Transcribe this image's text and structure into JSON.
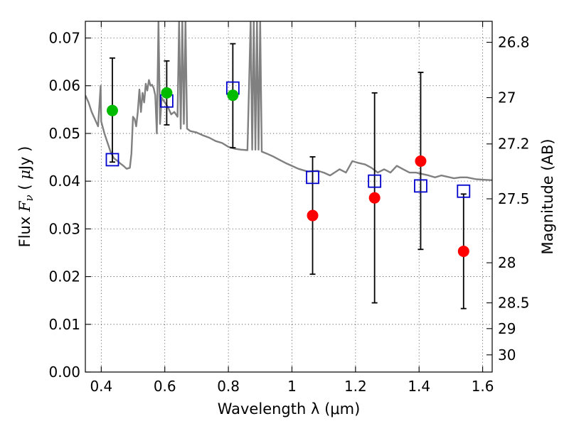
{
  "chart_data": {
    "type": "scatter",
    "title": "",
    "xlabel": "Wavelength  λ (μm)",
    "ylabel": "Flux  F_ν  ( μJy )",
    "ylabel_right": "Magnitude (AB)",
    "xlim": [
      0.35,
      1.63
    ],
    "ylim": [
      0.0,
      0.0735
    ],
    "grid": true,
    "x_ticks": [
      0.4,
      0.6,
      0.8,
      1.0,
      1.2,
      1.4,
      1.6
    ],
    "x_tick_labels": [
      "0.4",
      "0.6",
      "0.8",
      "1",
      "1.2",
      "1.4",
      "1.6"
    ],
    "y_ticks": [
      0.0,
      0.01,
      0.02,
      0.03,
      0.04,
      0.05,
      0.06,
      0.07
    ],
    "y_tick_labels": [
      "0.00",
      "0.01",
      "0.02",
      "0.03",
      "0.04",
      "0.05",
      "0.06",
      "0.07"
    ],
    "right_ticks": [
      {
        "label": "26.8",
        "flux": 0.0691
      },
      {
        "label": "27",
        "flux": 0.0575
      },
      {
        "label": "27.2",
        "flux": 0.0478
      },
      {
        "label": "27.5",
        "flux": 0.0363
      },
      {
        "label": "28",
        "flux": 0.0229
      },
      {
        "label": "28.5",
        "flux": 0.0145
      },
      {
        "label": "29",
        "flux": 0.0091
      },
      {
        "label": "30",
        "flux": 0.0036
      }
    ],
    "series": [
      {
        "marker": "circle",
        "color": "#00bb00",
        "points": [
          {
            "x": 0.435,
            "y": 0.0548
          },
          {
            "x": 0.606,
            "y": 0.0585
          },
          {
            "x": 0.814,
            "y": 0.058
          }
        ]
      },
      {
        "marker": "circle",
        "color": "#ff0000",
        "points": [
          {
            "x": 1.065,
            "y": 0.0328
          },
          {
            "x": 1.26,
            "y": 0.0365
          },
          {
            "x": 1.405,
            "y": 0.0442
          },
          {
            "x": 1.54,
            "y": 0.0253
          }
        ]
      },
      {
        "marker": "square-open",
        "color": "#0000cc",
        "points": [
          {
            "x": 0.435,
            "y": 0.0445
          },
          {
            "x": 0.606,
            "y": 0.0568
          },
          {
            "x": 0.814,
            "y": 0.0595
          },
          {
            "x": 1.065,
            "y": 0.0408
          },
          {
            "x": 1.26,
            "y": 0.04
          },
          {
            "x": 1.405,
            "y": 0.039
          },
          {
            "x": 1.54,
            "y": 0.0379
          }
        ]
      }
    ],
    "error_bars": [
      {
        "x": 0.435,
        "low": 0.044,
        "high": 0.0658
      },
      {
        "x": 0.606,
        "low": 0.0518,
        "high": 0.0652
      },
      {
        "x": 0.814,
        "low": 0.047,
        "high": 0.0688
      },
      {
        "x": 1.065,
        "low": 0.0205,
        "high": 0.0451
      },
      {
        "x": 1.26,
        "low": 0.0145,
        "high": 0.0585
      },
      {
        "x": 1.405,
        "low": 0.0257,
        "high": 0.0628
      },
      {
        "x": 1.54,
        "low": 0.0133,
        "high": 0.0373
      }
    ],
    "spectrum": {
      "color": "#808080",
      "points": [
        [
          0.35,
          0.058
        ],
        [
          0.36,
          0.0565
        ],
        [
          0.37,
          0.0545
        ],
        [
          0.38,
          0.053
        ],
        [
          0.39,
          0.0515
        ],
        [
          0.398,
          0.06
        ],
        [
          0.4,
          0.0525
        ],
        [
          0.41,
          0.05
        ],
        [
          0.42,
          0.048
        ],
        [
          0.43,
          0.046
        ],
        [
          0.44,
          0.0448
        ],
        [
          0.45,
          0.0443
        ],
        [
          0.46,
          0.0437
        ],
        [
          0.47,
          0.0432
        ],
        [
          0.48,
          0.0426
        ],
        [
          0.49,
          0.0428
        ],
        [
          0.495,
          0.0458
        ],
        [
          0.5,
          0.0535
        ],
        [
          0.505,
          0.053
        ],
        [
          0.51,
          0.0515
        ],
        [
          0.515,
          0.0545
        ],
        [
          0.52,
          0.0592
        ],
        [
          0.525,
          0.0545
        ],
        [
          0.53,
          0.0585
        ],
        [
          0.535,
          0.0565
        ],
        [
          0.54,
          0.0604
        ],
        [
          0.545,
          0.059
        ],
        [
          0.55,
          0.0612
        ],
        [
          0.555,
          0.06
        ],
        [
          0.56,
          0.0602
        ],
        [
          0.565,
          0.0595
        ],
        [
          0.57,
          0.058
        ],
        [
          0.575,
          0.05
        ],
        [
          0.58,
          0.0735
        ],
        [
          0.585,
          0.052
        ],
        [
          0.59,
          0.0575
        ],
        [
          0.6,
          0.0565
        ],
        [
          0.61,
          0.0555
        ],
        [
          0.62,
          0.054
        ],
        [
          0.63,
          0.0545
        ],
        [
          0.64,
          0.0535
        ],
        [
          0.645,
          0.0735
        ],
        [
          0.65,
          0.051
        ],
        [
          0.655,
          0.0735
        ],
        [
          0.66,
          0.052
        ],
        [
          0.665,
          0.0735
        ],
        [
          0.67,
          0.051
        ],
        [
          0.68,
          0.0505
        ],
        [
          0.7,
          0.0502
        ],
        [
          0.72,
          0.0496
        ],
        [
          0.74,
          0.0491
        ],
        [
          0.76,
          0.0484
        ],
        [
          0.78,
          0.048
        ],
        [
          0.8,
          0.0472
        ],
        [
          0.82,
          0.0468
        ],
        [
          0.84,
          0.0466
        ],
        [
          0.86,
          0.0465
        ],
        [
          0.87,
          0.0735
        ],
        [
          0.875,
          0.0466
        ],
        [
          0.88,
          0.0735
        ],
        [
          0.885,
          0.0466
        ],
        [
          0.89,
          0.0735
        ],
        [
          0.895,
          0.0466
        ],
        [
          0.9,
          0.0735
        ],
        [
          0.905,
          0.0462
        ],
        [
          0.92,
          0.0458
        ],
        [
          0.94,
          0.0452
        ],
        [
          0.96,
          0.0445
        ],
        [
          0.98,
          0.0438
        ],
        [
          1.0,
          0.0432
        ],
        [
          1.02,
          0.0426
        ],
        [
          1.05,
          0.042
        ],
        [
          1.08,
          0.0422
        ],
        [
          1.1,
          0.0418
        ],
        [
          1.12,
          0.0412
        ],
        [
          1.15,
          0.0425
        ],
        [
          1.17,
          0.0418
        ],
        [
          1.19,
          0.0442
        ],
        [
          1.21,
          0.0438
        ],
        [
          1.23,
          0.0435
        ],
        [
          1.25,
          0.0428
        ],
        [
          1.27,
          0.0418
        ],
        [
          1.29,
          0.0425
        ],
        [
          1.31,
          0.0418
        ],
        [
          1.33,
          0.0432
        ],
        [
          1.35,
          0.0425
        ],
        [
          1.37,
          0.0418
        ],
        [
          1.39,
          0.0418
        ],
        [
          1.41,
          0.0415
        ],
        [
          1.43,
          0.0412
        ],
        [
          1.45,
          0.0408
        ],
        [
          1.47,
          0.0412
        ],
        [
          1.49,
          0.0409
        ],
        [
          1.51,
          0.0406
        ],
        [
          1.53,
          0.0408
        ],
        [
          1.55,
          0.0408
        ],
        [
          1.58,
          0.0404
        ],
        [
          1.6,
          0.0403
        ],
        [
          1.63,
          0.0402
        ]
      ]
    }
  }
}
